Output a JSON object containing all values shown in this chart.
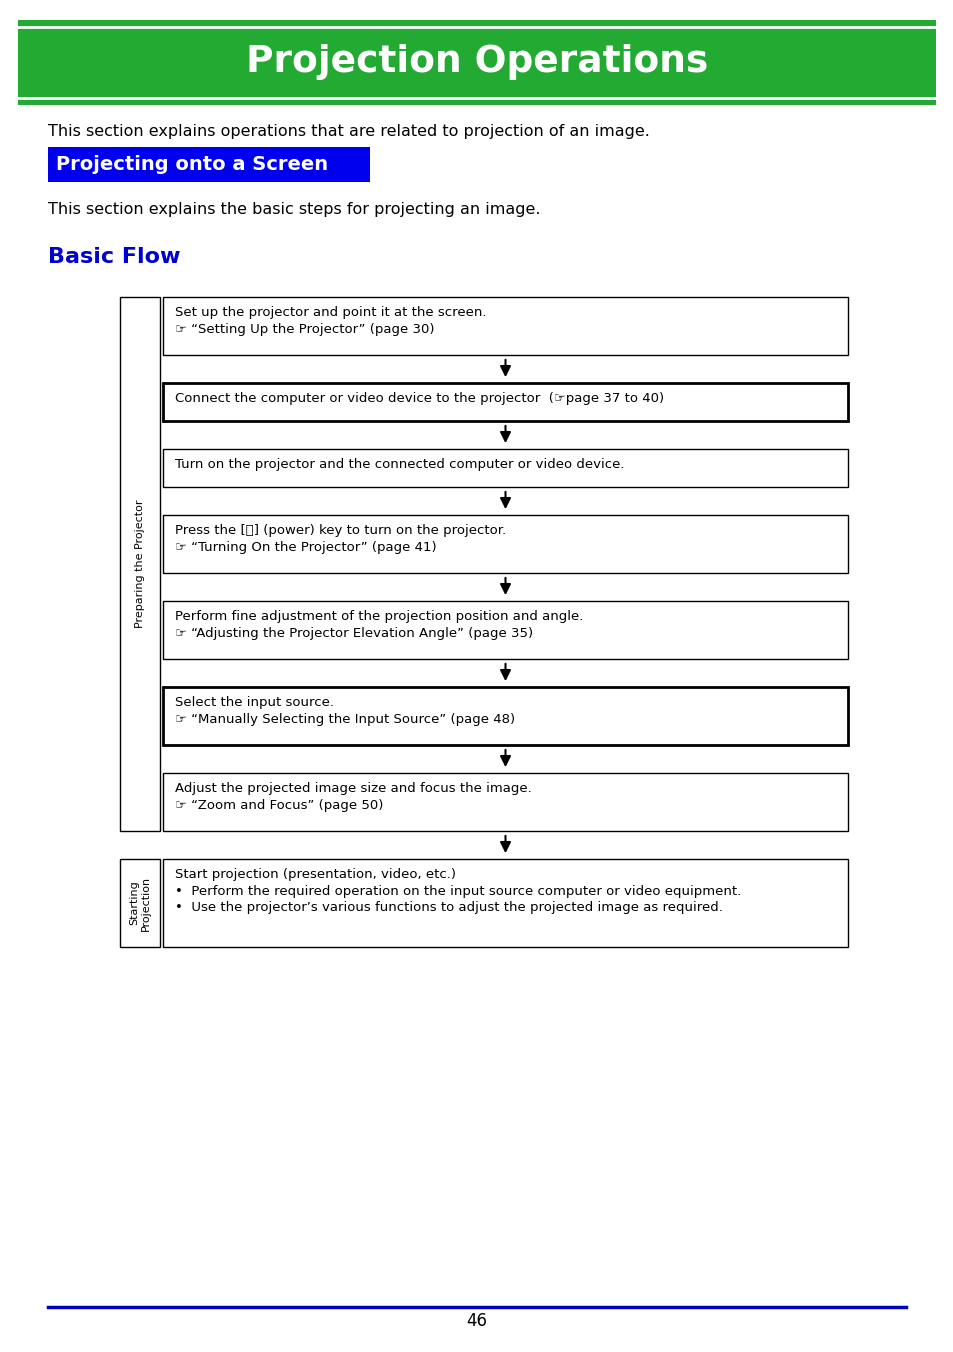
{
  "page_bg": "#ffffff",
  "title_text": "Projection Operations",
  "title_bg": "#22aa33",
  "title_text_color": "#ffffff",
  "section1_text": "Projecting onto a Screen",
  "section1_bg": "#0000ee",
  "section1_text_color": "#ffffff",
  "section2_text": "Basic Flow",
  "section2_color": "#0000cc",
  "intro_text1": "This section explains operations that are related to projection of an image.",
  "intro_text2": "This section explains the basic steps for projecting an image.",
  "label_preparing": "Preparing the Projector",
  "label_starting": "Starting\nProjection",
  "flow_boxes": [
    {
      "line1": "Set up the projector and point it at the screen.",
      "line2": "☞ “Setting Up the Projector” (page 30)",
      "bold_border": false
    },
    {
      "line1": "Connect the computer or video device to the projector  (☞page 37 to 40)",
      "line2": "",
      "bold_border": true
    },
    {
      "line1": "Turn on the projector and the connected computer or video device.",
      "line2": "",
      "bold_border": false
    },
    {
      "line1": "Press the [⏻] (power) key to turn on the projector.",
      "line2": "☞ “Turning On the Projector” (page 41)",
      "bold_border": false
    },
    {
      "line1": "Perform fine adjustment of the projection position and angle.",
      "line2": "☞ “Adjusting the Projector Elevation Angle” (page 35)",
      "bold_border": false
    },
    {
      "line1": "Select the input source.",
      "line2": "☞ “Manually Selecting the Input Source” (page 48)",
      "bold_border": true
    },
    {
      "line1": "Adjust the projected image size and focus the image.",
      "line2": "☞ “Zoom and Focus” (page 50)",
      "bold_border": false
    },
    {
      "line1": "Start projection (presentation, video, etc.)",
      "line2": "•  Perform the required operation on the input source computer or video equipment.\n•  Use the projector’s various functions to adjust the projected image as required.",
      "bold_border": false,
      "is_last": true
    }
  ],
  "page_number": "46",
  "footer_line_color": "#0000bb"
}
